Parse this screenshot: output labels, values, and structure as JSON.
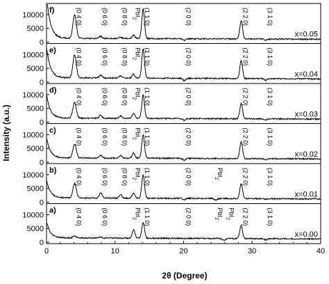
{
  "chart_data": {
    "type": "line",
    "xlabel": "2θ (Degree)",
    "ylabel": "Intensity (a.u.)",
    "xlim": [
      0,
      40
    ],
    "xticks": [
      "0",
      "10",
      "20",
      "30",
      "40"
    ],
    "yticks": [
      "0",
      "5000",
      "10000"
    ],
    "ylim": [
      0,
      13500
    ],
    "panels": [
      {
        "label": "f)",
        "x_value": "x=0.05",
        "baseline": 1400,
        "wing": 12000,
        "peaks": [
          [
            4.1,
            10000,
            0.25
          ],
          [
            7.9,
            2200,
            0.2
          ],
          [
            10.8,
            1800,
            0.2
          ],
          [
            12.7,
            2600,
            0.2
          ],
          [
            14.1,
            12000,
            0.2
          ],
          [
            20.1,
            800,
            0.2
          ],
          [
            28.4,
            8000,
            0.2
          ],
          [
            32.0,
            1000,
            0.2
          ]
        ],
        "annotations": [
          [
            4.1,
            "(0 4 0)"
          ],
          [
            7.9,
            "(0 6 0)"
          ],
          [
            10.8,
            "(0 8 0)"
          ],
          [
            12.7,
            "PbI2"
          ],
          [
            14.1,
            "(1 1 0)"
          ],
          [
            20.1,
            "(2 0 0)"
          ],
          [
            28.4,
            "(2 2 0)"
          ],
          [
            32.0,
            "(3 1 0)"
          ]
        ]
      },
      {
        "label": "e)",
        "x_value": "x=0.04",
        "baseline": 1600,
        "wing": 8500,
        "peaks": [
          [
            4.1,
            10000,
            0.25
          ],
          [
            7.9,
            2700,
            0.2
          ],
          [
            10.8,
            2400,
            0.2
          ],
          [
            12.7,
            3000,
            0.2
          ],
          [
            14.1,
            12000,
            0.2
          ],
          [
            20.1,
            800,
            0.2
          ],
          [
            28.4,
            8000,
            0.2
          ],
          [
            32.0,
            1000,
            0.2
          ]
        ],
        "annotations": [
          [
            4.1,
            "(0 4 0)"
          ],
          [
            7.9,
            "(0 6 0)"
          ],
          [
            10.8,
            "(0 8 0)"
          ],
          [
            12.7,
            "PbI2"
          ],
          [
            14.1,
            "(1 1 0)"
          ],
          [
            20.1,
            "(2 0 0)"
          ],
          [
            28.4,
            "(2 2 0)"
          ],
          [
            32.0,
            "(3 1 0)"
          ]
        ]
      },
      {
        "label": "d)",
        "x_value": "x=0.03",
        "baseline": 1500,
        "wing": 6500,
        "peaks": [
          [
            4.1,
            7200,
            0.25
          ],
          [
            7.9,
            2600,
            0.2
          ],
          [
            10.8,
            2400,
            0.2
          ],
          [
            12.7,
            3200,
            0.2
          ],
          [
            14.1,
            10000,
            0.2
          ],
          [
            20.1,
            900,
            0.2
          ],
          [
            28.4,
            7200,
            0.2
          ],
          [
            32.0,
            1200,
            0.2
          ]
        ],
        "annotations": [
          [
            4.1,
            "(0 4 0)"
          ],
          [
            7.9,
            "(0 6 0)"
          ],
          [
            10.8,
            "(0 8 0)"
          ],
          [
            12.7,
            "PbI2"
          ],
          [
            14.1,
            "(1 1 0)"
          ],
          [
            20.1,
            "(2 0 0)"
          ],
          [
            28.4,
            "(2 2 0)"
          ],
          [
            32.0,
            "(3 1 0)"
          ]
        ]
      },
      {
        "label": "c)",
        "x_value": "x=0.02",
        "baseline": 1600,
        "wing": 5500,
        "peaks": [
          [
            4.1,
            6600,
            0.25
          ],
          [
            7.9,
            2700,
            0.2
          ],
          [
            10.8,
            2500,
            0.2
          ],
          [
            12.7,
            3500,
            0.2
          ],
          [
            14.1,
            10000,
            0.2
          ],
          [
            20.1,
            900,
            0.2
          ],
          [
            28.4,
            7600,
            0.2
          ],
          [
            32.0,
            1300,
            0.2
          ]
        ],
        "annotations": [
          [
            4.1,
            "(0 4 0)"
          ],
          [
            7.9,
            "(0 6 0)"
          ],
          [
            10.8,
            "(0 8 0)"
          ],
          [
            12.7,
            "PbI2"
          ],
          [
            14.1,
            "(1 1 0)"
          ],
          [
            20.1,
            "(2 0 0)"
          ],
          [
            28.4,
            "(2 2 0)"
          ],
          [
            32.0,
            "(3 1 0)"
          ]
        ]
      },
      {
        "label": "b)",
        "x_value": "x=0.01",
        "baseline": 1600,
        "wing": 5000,
        "peaks": [
          [
            4.1,
            6800,
            0.25
          ],
          [
            7.9,
            3500,
            0.2
          ],
          [
            10.8,
            2800,
            0.2
          ],
          [
            12.7,
            3400,
            0.2
          ],
          [
            14.1,
            10000,
            0.2
          ],
          [
            20.1,
            1100,
            0.2
          ],
          [
            24.7,
            1000,
            0.2
          ],
          [
            28.4,
            7000,
            0.2
          ],
          [
            32.0,
            1400,
            0.2
          ]
        ],
        "annotations": [
          [
            4.1,
            "(0 4 0)"
          ],
          [
            7.9,
            "(0 6 0)"
          ],
          [
            10.8,
            "(0 8 0)"
          ],
          [
            12.7,
            "PbI2"
          ],
          [
            14.1,
            "(1 1 0)"
          ],
          [
            20.1,
            "(2 0 0)"
          ],
          [
            24.7,
            "PbI2"
          ],
          [
            28.4,
            "(2 2 0)"
          ],
          [
            32.0,
            "(3 1 0)"
          ]
        ]
      },
      {
        "label": "a)",
        "x_value": "x=0.00",
        "baseline": 1600,
        "wing": 4500,
        "peaks": [
          [
            4.1,
            2200,
            0.25
          ],
          [
            7.9,
            2000,
            0.2
          ],
          [
            12.7,
            4600,
            0.2
          ],
          [
            14.1,
            7300,
            0.2
          ],
          [
            20.1,
            1500,
            0.2
          ],
          [
            24.7,
            1700,
            0.2
          ],
          [
            25.9,
            900,
            0.2
          ],
          [
            28.4,
            6300,
            0.2
          ],
          [
            32.0,
            1200,
            0.2
          ]
        ],
        "annotations": [
          [
            4.1,
            "(0 4 0)"
          ],
          [
            7.9,
            "(0 6 0)"
          ],
          [
            12.7,
            "PbI2"
          ],
          [
            14.1,
            "(1 1 0)"
          ],
          [
            20.1,
            "(2 0 0)"
          ],
          [
            24.7,
            "PbI2"
          ],
          [
            26.4,
            "PbI2"
          ],
          [
            28.4,
            "(2 2 0)"
          ],
          [
            32.0,
            "(3 1 0)"
          ]
        ]
      }
    ]
  }
}
